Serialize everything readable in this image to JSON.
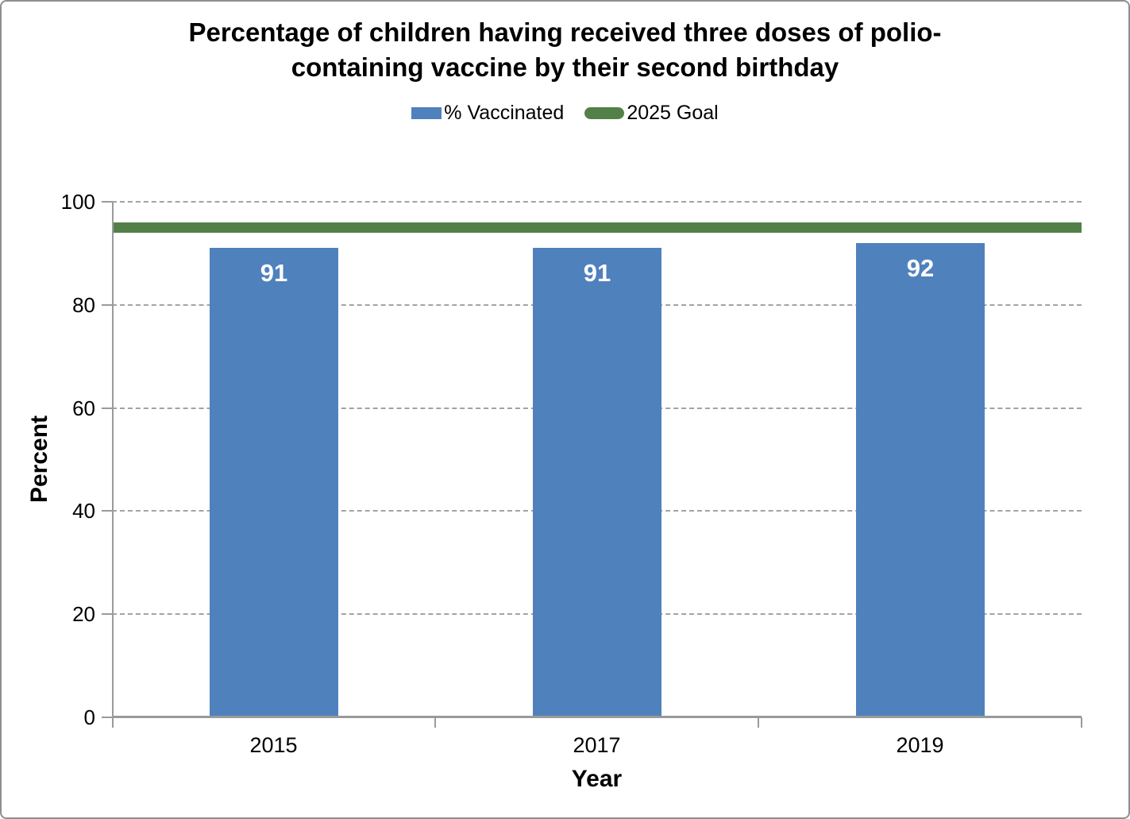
{
  "title_lines": [
    "Percentage of children having received three doses of polio-",
    "containing vaccine by their second birthday"
  ],
  "chart_data": {
    "type": "bar",
    "title": "Percentage of children having received three doses of polio-containing vaccine by their second birthday",
    "categories": [
      "2015",
      "2017",
      "2019"
    ],
    "series": [
      {
        "name": "% Vaccinated",
        "type": "bar",
        "values": [
          91,
          91,
          92
        ],
        "labels": [
          "91",
          "91",
          "92"
        ],
        "color": "#4f81bd",
        "label_color": "#ffffff"
      },
      {
        "name": "2025 Goal",
        "type": "line",
        "value": 95,
        "color": "#538049"
      }
    ],
    "xlabel": "Year",
    "ylabel": "Percent",
    "ylim": [
      0,
      100
    ],
    "yticks": [
      0,
      20,
      40,
      60,
      80,
      100
    ],
    "grid": true,
    "legend_position": "top-center"
  }
}
